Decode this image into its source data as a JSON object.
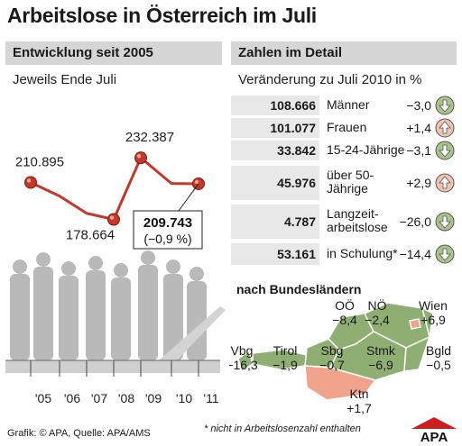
{
  "title": "Arbeitslose in Österreich im Juli",
  "left_panel": {
    "heading": "Entwicklung seit 2005",
    "subtitle": "Jeweils Ende Juli"
  },
  "chart_data": {
    "type": "line",
    "title": "Entwicklung seit 2005",
    "subtitle": "Jeweils Ende Juli",
    "x": [
      "'05",
      "'06",
      "'07",
      "'08",
      "'09",
      "'10",
      "'11"
    ],
    "series": [
      {
        "values": [
          210895,
          199000,
          184000,
          178664,
          232387,
          210000,
          209743
        ]
      }
    ],
    "labeled_points": [
      {
        "index": 0,
        "label": "210.895"
      },
      {
        "index": 3,
        "label": "178.664"
      },
      {
        "index": 4,
        "label": "232.387"
      },
      {
        "index": 6,
        "label": "209.743",
        "note": "(−0,9 %)"
      }
    ],
    "marker_indices": [
      0,
      3,
      4,
      6
    ],
    "ylim": [
      150000,
      260000
    ],
    "line_color": "#c0392b",
    "grid": false
  },
  "right_panel": {
    "heading": "Zahlen im Detail",
    "subtitle": "Veränderung zu Juli 2010 in %",
    "rows": [
      {
        "value": "108.666",
        "label": "Männer",
        "change": "−3,0",
        "direction": "down"
      },
      {
        "value": "101.077",
        "label": "Frauen",
        "change": "+1,4",
        "direction": "up"
      },
      {
        "value": "33.842",
        "label": "15-24-Jährige",
        "change": "−3,1",
        "direction": "down"
      },
      {
        "value": "45.976",
        "label": "über 50-\nJährige",
        "change": "+2,9",
        "direction": "up"
      },
      {
        "value": "4.787",
        "label": "Langzeit-\narbeitslose",
        "change": "−26,0",
        "direction": "down"
      },
      {
        "value": "53.161",
        "label": "in Schulung*",
        "change": "−14,4",
        "direction": "down"
      }
    ]
  },
  "bundeslaender": {
    "heading": "nach Bundesländern",
    "states": [
      {
        "name": "OÖ",
        "change": "−8,4"
      },
      {
        "name": "NÖ",
        "change": "−2,4"
      },
      {
        "name": "Wien",
        "change": "+6,9"
      },
      {
        "name": "Vbg",
        "change": "−16,3"
      },
      {
        "name": "Tirol",
        "change": "−1,9"
      },
      {
        "name": "Sbg",
        "change": "−0,7"
      },
      {
        "name": "Stmk",
        "change": "−6,9"
      },
      {
        "name": "Bgld",
        "change": "−0,5"
      },
      {
        "name": "Ktn",
        "change": "+1,7"
      }
    ]
  },
  "footer": "Grafik: © APA, Quelle: APA/AMS",
  "footnote": "* nicht in Arbeitslosenzahl enthalten",
  "logo_text": "APA",
  "colors": {
    "up_arrow": "#f2c2b0",
    "down_arrow": "#a9c48a",
    "map_decrease": "#8fae72",
    "map_increase": "#f0a48c"
  }
}
